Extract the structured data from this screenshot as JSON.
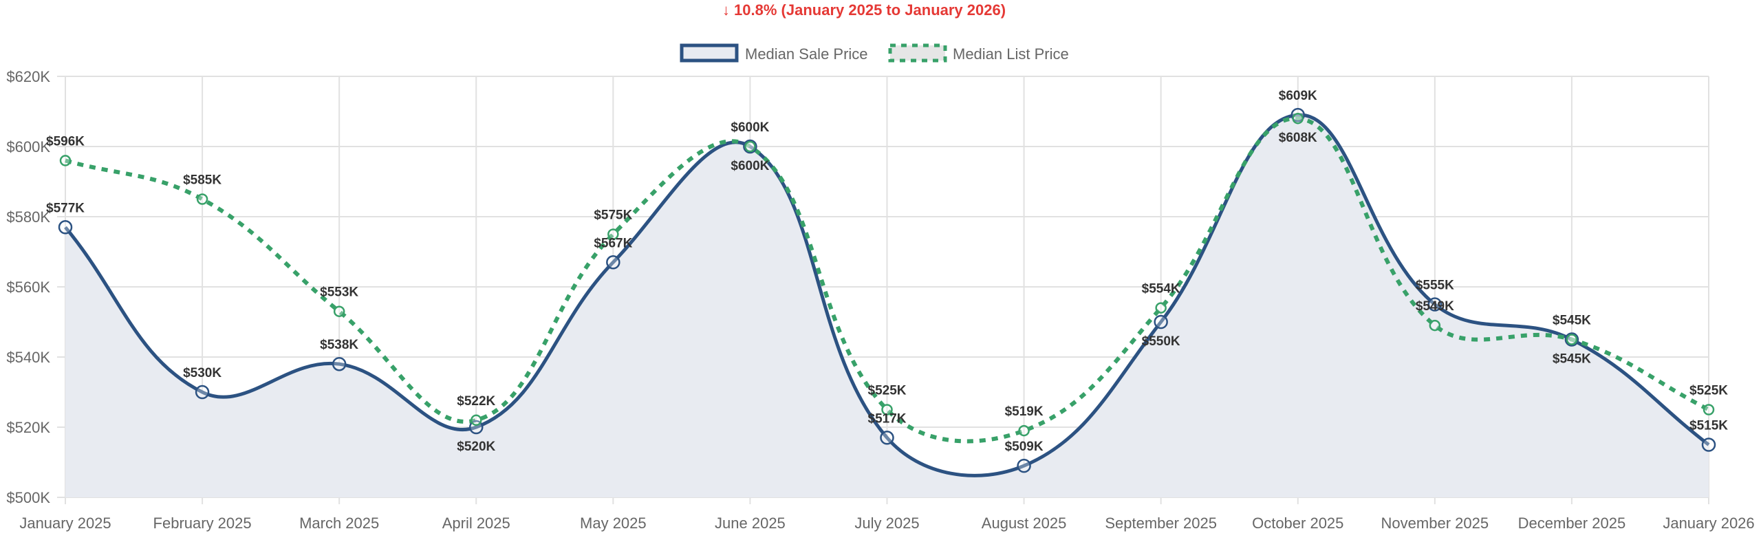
{
  "chart_data": {
    "type": "line",
    "title": "↓ 10.8% (January 2025 to January 2026)",
    "title_color": "#e53935",
    "categories": [
      "January 2025",
      "February 2025",
      "March 2025",
      "April 2025",
      "May 2025",
      "June 2025",
      "July 2025",
      "August 2025",
      "September 2025",
      "October 2025",
      "November 2025",
      "December 2025",
      "January 2026"
    ],
    "ylim": [
      500000,
      620000
    ],
    "yticks": [
      500000,
      520000,
      540000,
      560000,
      580000,
      600000,
      620000
    ],
    "ytick_labels": [
      "$500K",
      "$520K",
      "$540K",
      "$560K",
      "$580K",
      "$600K",
      "$620K"
    ],
    "grid": true,
    "legend_position": "top",
    "series": [
      {
        "name": "Median Sale Price",
        "color": "#2c5282",
        "fill": "#e8ebf1",
        "style": "solid",
        "filled": true,
        "values": [
          577000,
          530000,
          538000,
          520000,
          567000,
          600000,
          517000,
          509000,
          550000,
          609000,
          555000,
          545000,
          515000
        ],
        "labels": [
          "$577K",
          "$530K",
          "$538K",
          "$520K",
          "$567K",
          "$600K",
          "$517K",
          "$509K",
          "$550K",
          "$609K",
          "$555K",
          "$545K",
          "$515K"
        ]
      },
      {
        "name": "Median List Price",
        "color": "#38a169",
        "fill": "#e6e6e6",
        "style": "dashed",
        "filled": false,
        "values": [
          596000,
          585000,
          553000,
          522000,
          575000,
          600000,
          525000,
          519000,
          554000,
          608000,
          549000,
          545000,
          525000
        ],
        "labels": [
          "$596K",
          "$585K",
          "$553K",
          "$522K",
          "$575K",
          "$600K",
          "$525K",
          "$519K",
          "$554K",
          "$608K",
          "$549K",
          "$545K",
          "$525K"
        ]
      }
    ]
  }
}
